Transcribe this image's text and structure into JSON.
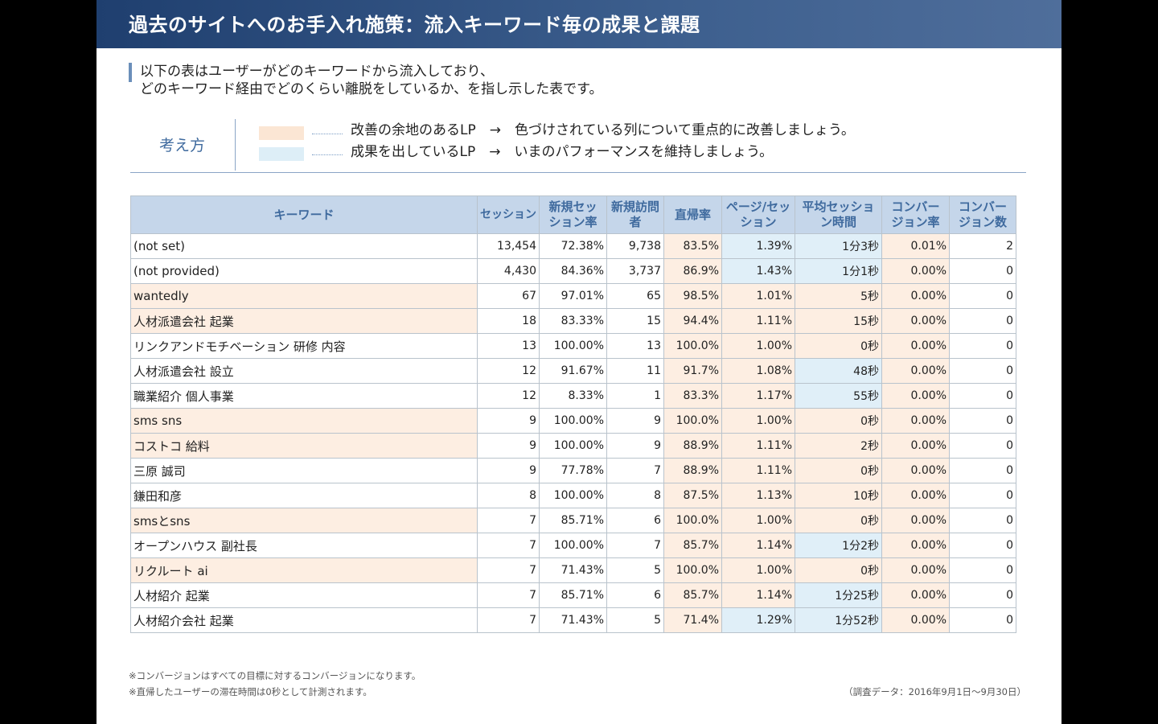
{
  "title": "過去のサイトへのお手入れ施策：流入キーワード毎の成果と課題",
  "intro": {
    "line1": "以下の表はユーザーがどのキーワードから流入しており、",
    "line2": "どのキーワード経由でどのくらい離脱をしているか、を指し示した表です。"
  },
  "thinking": {
    "label": "考え方",
    "legend1": "改善の余地のあるLP　→　色づけされている列について重点的に改善しましょう。",
    "legend2": "成果を出しているLP　→　いまのパフォーマンスを維持しましょう。",
    "color_improve": "#fbe6d4",
    "color_good": "#ddeef7"
  },
  "table": {
    "headers": [
      "キーワード",
      "セッション",
      "新規セッション率",
      "新規訪問者",
      "直帰率",
      "ページ/セッション",
      "平均セッション時間",
      "コンバージョン率",
      "コンバージョン数"
    ],
    "rows": [
      {
        "k": "(not set)",
        "s": "13,454",
        "nr": "72.38%",
        "nv": "9,738",
        "br": "83.5%",
        "pps": "1.39%",
        "t": "1分3秒",
        "cr": "0.01%",
        "cn": "2",
        "hl": [
          "",
          "",
          "",
          "",
          "o",
          "b",
          "b",
          "o",
          ""
        ]
      },
      {
        "k": "(not provided)",
        "s": "4,430",
        "nr": "84.36%",
        "nv": "3,737",
        "br": "86.9%",
        "pps": "1.43%",
        "t": "1分1秒",
        "cr": "0.00%",
        "cn": "0",
        "hl": [
          "",
          "",
          "",
          "",
          "o",
          "b",
          "b",
          "o",
          ""
        ]
      },
      {
        "k": "wantedly",
        "s": "67",
        "nr": "97.01%",
        "nv": "65",
        "br": "98.5%",
        "pps": "1.01%",
        "t": "5秒",
        "cr": "0.00%",
        "cn": "0",
        "hl": [
          "o",
          "",
          "",
          "",
          "o",
          "o",
          "o",
          "o",
          ""
        ]
      },
      {
        "k": "人材派遣会社 起業",
        "s": "18",
        "nr": "83.33%",
        "nv": "15",
        "br": "94.4%",
        "pps": "1.11%",
        "t": "15秒",
        "cr": "0.00%",
        "cn": "0",
        "hl": [
          "o",
          "",
          "",
          "",
          "o",
          "o",
          "o",
          "o",
          ""
        ]
      },
      {
        "k": "リンクアンドモチベーション 研修 内容",
        "s": "13",
        "nr": "100.00%",
        "nv": "13",
        "br": "100.0%",
        "pps": "1.00%",
        "t": "0秒",
        "cr": "0.00%",
        "cn": "0",
        "hl": [
          "",
          "",
          "",
          "",
          "o",
          "o",
          "o",
          "o",
          ""
        ]
      },
      {
        "k": "人材派遣会社 設立",
        "s": "12",
        "nr": "91.67%",
        "nv": "11",
        "br": "91.7%",
        "pps": "1.08%",
        "t": "48秒",
        "cr": "0.00%",
        "cn": "0",
        "hl": [
          "",
          "",
          "",
          "",
          "o",
          "o",
          "b",
          "o",
          ""
        ]
      },
      {
        "k": "職業紹介 個人事業",
        "s": "12",
        "nr": "8.33%",
        "nv": "1",
        "br": "83.3%",
        "pps": "1.17%",
        "t": "55秒",
        "cr": "0.00%",
        "cn": "0",
        "hl": [
          "",
          "",
          "",
          "",
          "o",
          "o",
          "b",
          "o",
          ""
        ]
      },
      {
        "k": "sms sns",
        "s": "9",
        "nr": "100.00%",
        "nv": "9",
        "br": "100.0%",
        "pps": "1.00%",
        "t": "0秒",
        "cr": "0.00%",
        "cn": "0",
        "hl": [
          "o",
          "",
          "",
          "",
          "o",
          "o",
          "o",
          "o",
          ""
        ]
      },
      {
        "k": "コストコ 給料",
        "s": "9",
        "nr": "100.00%",
        "nv": "9",
        "br": "88.9%",
        "pps": "1.11%",
        "t": "2秒",
        "cr": "0.00%",
        "cn": "0",
        "hl": [
          "o",
          "",
          "",
          "",
          "o",
          "o",
          "o",
          "o",
          ""
        ]
      },
      {
        "k": "三原 誠司",
        "s": "9",
        "nr": "77.78%",
        "nv": "7",
        "br": "88.9%",
        "pps": "1.11%",
        "t": "0秒",
        "cr": "0.00%",
        "cn": "0",
        "hl": [
          "",
          "",
          "",
          "",
          "o",
          "o",
          "o",
          "o",
          ""
        ]
      },
      {
        "k": "鎌田和彦",
        "s": "8",
        "nr": "100.00%",
        "nv": "8",
        "br": "87.5%",
        "pps": "1.13%",
        "t": "10秒",
        "cr": "0.00%",
        "cn": "0",
        "hl": [
          "",
          "",
          "",
          "",
          "o",
          "o",
          "o",
          "o",
          ""
        ]
      },
      {
        "k": "smsとsns",
        "s": "7",
        "nr": "85.71%",
        "nv": "6",
        "br": "100.0%",
        "pps": "1.00%",
        "t": "0秒",
        "cr": "0.00%",
        "cn": "0",
        "hl": [
          "o",
          "",
          "",
          "",
          "o",
          "o",
          "o",
          "o",
          ""
        ]
      },
      {
        "k": "オープンハウス 副社長",
        "s": "7",
        "nr": "100.00%",
        "nv": "7",
        "br": "85.7%",
        "pps": "1.14%",
        "t": "1分2秒",
        "cr": "0.00%",
        "cn": "0",
        "hl": [
          "",
          "",
          "",
          "",
          "o",
          "o",
          "b",
          "o",
          ""
        ]
      },
      {
        "k": "リクルート ai",
        "s": "7",
        "nr": "71.43%",
        "nv": "5",
        "br": "100.0%",
        "pps": "1.00%",
        "t": "0秒",
        "cr": "0.00%",
        "cn": "0",
        "hl": [
          "o",
          "",
          "",
          "",
          "o",
          "o",
          "o",
          "o",
          ""
        ]
      },
      {
        "k": "人材紹介 起業",
        "s": "7",
        "nr": "85.71%",
        "nv": "6",
        "br": "85.7%",
        "pps": "1.14%",
        "t": "1分25秒",
        "cr": "0.00%",
        "cn": "0",
        "hl": [
          "",
          "",
          "",
          "",
          "o",
          "o",
          "b",
          "o",
          ""
        ]
      },
      {
        "k": "人材紹介会社 起業",
        "s": "7",
        "nr": "71.43%",
        "nv": "5",
        "br": "71.4%",
        "pps": "1.29%",
        "t": "1分52秒",
        "cr": "0.00%",
        "cn": "0",
        "hl": [
          "",
          "",
          "",
          "",
          "o",
          "b",
          "b",
          "o",
          ""
        ]
      }
    ]
  },
  "footnotes": {
    "note1": "※コンバージョンはすべての目標に対するコンバージョンになります。",
    "note2": "※直帰したユーザーの滞在時間は0秒として計測されます。",
    "source": "（調査データ：2016年9月1日～9月30日）"
  }
}
